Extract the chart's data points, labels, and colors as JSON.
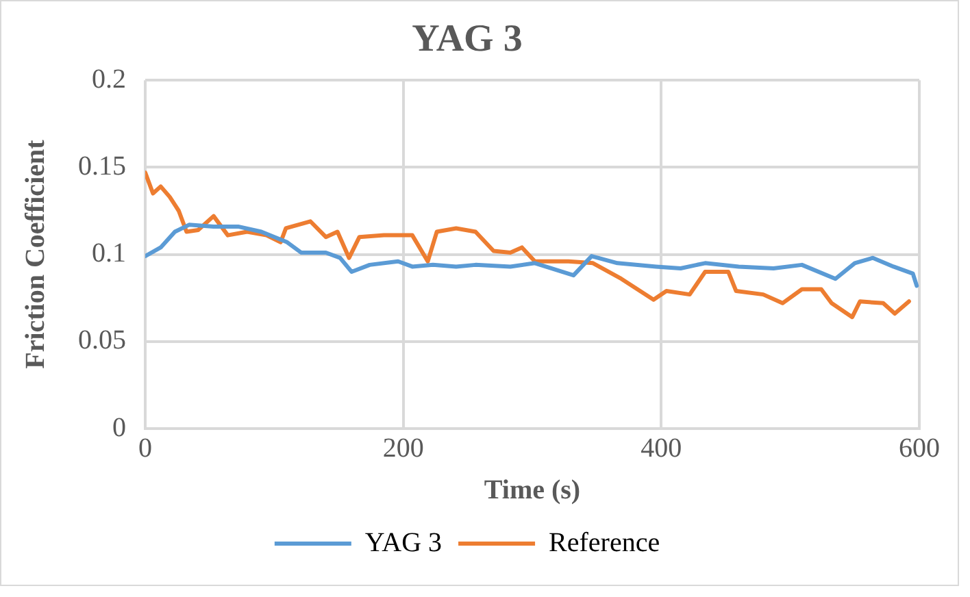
{
  "chart_data": {
    "type": "line",
    "title": "YAG 3",
    "xlabel": "Time (s)",
    "ylabel": "Friction Coefficient",
    "xlim": [
      0,
      600
    ],
    "xticks": [
      0,
      200,
      400,
      600
    ],
    "ylim": [
      0,
      0.2
    ],
    "yticks": [
      0,
      0.05,
      0.1,
      0.15,
      0.2
    ],
    "grid": true,
    "legend": "bottom",
    "marker": "none",
    "line_style": "solid",
    "series": [
      {
        "name": "YAG 3",
        "color": "#5b9bd5",
        "x": [
          0,
          12,
          23,
          34,
          53,
          72,
          90,
          110,
          121,
          140,
          151,
          160,
          174,
          196,
          207,
          223,
          241,
          256,
          283,
          302,
          332,
          346,
          366,
          396,
          415,
          434,
          460,
          487,
          509,
          535,
          550,
          564,
          580,
          595,
          598
        ],
        "values": [
          0.099,
          0.104,
          0.113,
          0.117,
          0.116,
          0.116,
          0.113,
          0.107,
          0.101,
          0.101,
          0.098,
          0.09,
          0.094,
          0.096,
          0.093,
          0.094,
          0.093,
          0.094,
          0.093,
          0.095,
          0.088,
          0.099,
          0.095,
          0.093,
          0.092,
          0.095,
          0.093,
          0.092,
          0.094,
          0.086,
          0.095,
          0.098,
          0.093,
          0.089,
          0.082
        ]
      },
      {
        "name": "Reference",
        "color": "#ed7d31",
        "x": [
          0,
          6,
          12,
          19,
          26,
          32,
          41,
          53,
          64,
          79,
          94,
          105,
          109,
          128,
          140,
          149,
          158,
          166,
          185,
          207,
          219,
          226,
          241,
          256,
          270,
          283,
          292,
          302,
          328,
          347,
          369,
          394,
          404,
          422,
          434,
          452,
          458,
          479,
          494,
          509,
          524,
          532,
          548,
          554,
          572,
          581,
          592
        ],
        "values": [
          0.147,
          0.135,
          0.139,
          0.133,
          0.125,
          0.113,
          0.114,
          0.122,
          0.111,
          0.113,
          0.111,
          0.107,
          0.115,
          0.119,
          0.11,
          0.113,
          0.098,
          0.11,
          0.111,
          0.111,
          0.096,
          0.113,
          0.115,
          0.113,
          0.102,
          0.101,
          0.104,
          0.096,
          0.096,
          0.095,
          0.086,
          0.074,
          0.079,
          0.077,
          0.09,
          0.09,
          0.079,
          0.077,
          0.072,
          0.08,
          0.08,
          0.072,
          0.064,
          0.073,
          0.072,
          0.066,
          0.073
        ]
      }
    ]
  }
}
